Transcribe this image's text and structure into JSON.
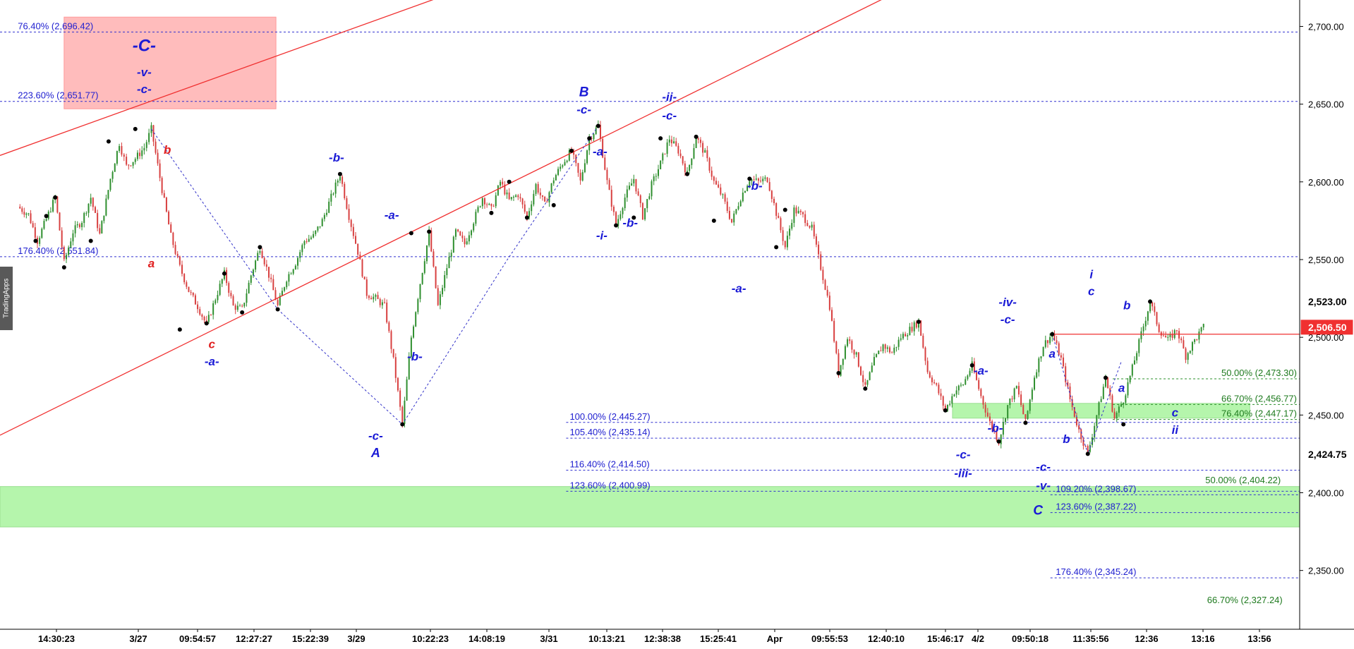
{
  "chart_data": {
    "type": "candlestick",
    "watermark": "TradingApps",
    "y_axis": {
      "ylim": [
        2314,
        2717
      ],
      "tick_labels": [
        "2,700.00",
        "2,650.00",
        "2,600.00",
        "2,550.00",
        "2,500.00",
        "2,450.00",
        "2,400.00",
        "2,350.00"
      ],
      "tick_values": [
        2700,
        2650,
        2600,
        2550,
        2500,
        2450,
        2400,
        2350
      ]
    },
    "x_axis": {
      "tick_labels": [
        "14:30:23",
        "3/27",
        "09:54:57",
        "12:27:27",
        "15:22:39",
        "3/29",
        "10:22:23",
        "14:08:19",
        "3/31",
        "10:13:21",
        "12:38:38",
        "15:25:41",
        "Apr",
        "09:55:53",
        "12:40:10",
        "15:46:17",
        "4/2",
        "09:50:18",
        "11:35:56",
        "12:36",
        "13:16",
        "13:56"
      ]
    },
    "price_markers": [
      {
        "label": "2,523.00",
        "value": 2523.0,
        "style": "dark"
      },
      {
        "label": "2,506.50",
        "value": 2506.5,
        "style": "current"
      },
      {
        "label": "2,424.75",
        "value": 2424.75,
        "style": "dark"
      }
    ],
    "price_path": [
      [
        0,
        2584
      ],
      [
        0.6,
        2579
      ],
      [
        1.1,
        2562
      ],
      [
        1.6,
        2576
      ],
      [
        2.1,
        2590
      ],
      [
        2.6,
        2548
      ],
      [
        3.1,
        2568
      ],
      [
        3.6,
        2575
      ],
      [
        4.1,
        2590
      ],
      [
        4.6,
        2566
      ],
      [
        5.2,
        2602
      ],
      [
        5.7,
        2625
      ],
      [
        6.1,
        2610
      ],
      [
        6.6,
        2615
      ],
      [
        7.1,
        2622
      ],
      [
        7.5,
        2634
      ],
      [
        8.1,
        2595
      ],
      [
        8.6,
        2565
      ],
      [
        9.1,
        2545
      ],
      [
        9.6,
        2530
      ],
      [
        10.1,
        2520
      ],
      [
        10.6,
        2508
      ],
      [
        11.1,
        2525
      ],
      [
        11.6,
        2541
      ],
      [
        12.1,
        2520
      ],
      [
        12.6,
        2518
      ],
      [
        13.1,
        2540
      ],
      [
        13.6,
        2558
      ],
      [
        14.1,
        2540
      ],
      [
        14.6,
        2520
      ],
      [
        15.1,
        2538
      ],
      [
        15.6,
        2548
      ],
      [
        16.1,
        2562
      ],
      [
        16.6,
        2565
      ],
      [
        17.1,
        2575
      ],
      [
        17.6,
        2590
      ],
      [
        18.1,
        2605
      ],
      [
        18.6,
        2578
      ],
      [
        19.1,
        2555
      ],
      [
        19.6,
        2528
      ],
      [
        20.1,
        2525
      ],
      [
        20.6,
        2520
      ],
      [
        21.1,
        2485
      ],
      [
        21.6,
        2444
      ],
      [
        22.1,
        2500
      ],
      [
        22.6,
        2535
      ],
      [
        23.1,
        2567
      ],
      [
        23.6,
        2520
      ],
      [
        24.1,
        2545
      ],
      [
        24.6,
        2568
      ],
      [
        25.1,
        2560
      ],
      [
        25.6,
        2575
      ],
      [
        26.1,
        2590
      ],
      [
        26.6,
        2582
      ],
      [
        27.1,
        2600
      ],
      [
        27.6,
        2588
      ],
      [
        28.1,
        2592
      ],
      [
        28.6,
        2577
      ],
      [
        29.1,
        2598
      ],
      [
        29.6,
        2585
      ],
      [
        30.1,
        2602
      ],
      [
        30.6,
        2612
      ],
      [
        31.1,
        2620
      ],
      [
        31.6,
        2600
      ],
      [
        32.1,
        2628
      ],
      [
        32.6,
        2636
      ],
      [
        33.1,
        2600
      ],
      [
        33.6,
        2572
      ],
      [
        34.1,
        2590
      ],
      [
        34.6,
        2602
      ],
      [
        35.1,
        2578
      ],
      [
        35.6,
        2598
      ],
      [
        36.1,
        2612
      ],
      [
        36.6,
        2628
      ],
      [
        37.1,
        2620
      ],
      [
        37.6,
        2605
      ],
      [
        38.1,
        2629
      ],
      [
        38.6,
        2618
      ],
      [
        39.1,
        2600
      ],
      [
        39.6,
        2590
      ],
      [
        40.1,
        2574
      ],
      [
        40.6,
        2590
      ],
      [
        41.1,
        2602
      ],
      [
        41.6,
        2600
      ],
      [
        42.1,
        2602
      ],
      [
        42.6,
        2580
      ],
      [
        43.1,
        2558
      ],
      [
        43.6,
        2582
      ],
      [
        44.1,
        2578
      ],
      [
        44.6,
        2570
      ],
      [
        45.1,
        2545
      ],
      [
        45.6,
        2520
      ],
      [
        46.1,
        2477
      ],
      [
        46.6,
        2500
      ],
      [
        47.1,
        2488
      ],
      [
        47.6,
        2467
      ],
      [
        48.1,
        2485
      ],
      [
        48.6,
        2495
      ],
      [
        49.1,
        2490
      ],
      [
        49.6,
        2500
      ],
      [
        50.1,
        2505
      ],
      [
        50.6,
        2510
      ],
      [
        51.1,
        2478
      ],
      [
        51.6,
        2468
      ],
      [
        52.1,
        2453
      ],
      [
        52.6,
        2465
      ],
      [
        53.1,
        2470
      ],
      [
        53.6,
        2482
      ],
      [
        54.1,
        2462
      ],
      [
        54.6,
        2445
      ],
      [
        55.1,
        2433
      ],
      [
        55.6,
        2456
      ],
      [
        56.1,
        2468
      ],
      [
        56.6,
        2445
      ],
      [
        57.1,
        2475
      ],
      [
        57.6,
        2495
      ],
      [
        58.1,
        2502
      ],
      [
        58.6,
        2486
      ],
      [
        59.1,
        2460
      ],
      [
        59.6,
        2440
      ],
      [
        60.1,
        2425
      ],
      [
        60.6,
        2450
      ],
      [
        61.1,
        2474
      ],
      [
        61.6,
        2448
      ],
      [
        62.1,
        2460
      ],
      [
        62.6,
        2480
      ],
      [
        63.1,
        2502
      ],
      [
        63.6,
        2523
      ],
      [
        64.1,
        2505
      ],
      [
        64.6,
        2498
      ],
      [
        65.1,
        2505
      ],
      [
        65.6,
        2488
      ],
      [
        66.1,
        2498
      ],
      [
        66.6,
        2506.5
      ]
    ],
    "pivots": [
      [
        1,
        2562
      ],
      [
        1.6,
        2578
      ],
      [
        2.1,
        2590
      ],
      [
        2.6,
        2545
      ],
      [
        4.1,
        2562
      ],
      [
        5.1,
        2626
      ],
      [
        6.6,
        2634
      ],
      [
        9.1,
        2505
      ],
      [
        10.6,
        2509
      ],
      [
        11.6,
        2541
      ],
      [
        12.6,
        2516
      ],
      [
        13.6,
        2558
      ],
      [
        14.6,
        2518
      ],
      [
        18.1,
        2605
      ],
      [
        21.6,
        2444
      ],
      [
        22.1,
        2567
      ],
      [
        23.1,
        2568
      ],
      [
        26.6,
        2580
      ],
      [
        27.6,
        2600
      ],
      [
        28.6,
        2577
      ],
      [
        30.1,
        2585
      ],
      [
        31.1,
        2620
      ],
      [
        32.1,
        2628
      ],
      [
        32.6,
        2636
      ],
      [
        33.6,
        2572
      ],
      [
        34.6,
        2577
      ],
      [
        36.1,
        2628
      ],
      [
        37.6,
        2605
      ],
      [
        38.1,
        2629
      ],
      [
        39.1,
        2575
      ],
      [
        41.1,
        2602
      ],
      [
        42.6,
        2558
      ],
      [
        43.1,
        2582
      ],
      [
        46.1,
        2477
      ],
      [
        47.6,
        2467
      ],
      [
        50.6,
        2510
      ],
      [
        52.1,
        2453
      ],
      [
        53.6,
        2482
      ],
      [
        55.1,
        2433
      ],
      [
        56.6,
        2445
      ],
      [
        58.1,
        2502
      ],
      [
        60.1,
        2425
      ],
      [
        61.1,
        2474
      ],
      [
        62.1,
        2444
      ],
      [
        63.6,
        2523
      ]
    ],
    "red_channel_lines": [
      {
        "from": [
          -1,
          2617
        ],
        "to": [
          24,
          2720
        ]
      },
      {
        "from": [
          -1,
          2437
        ],
        "to": [
          49,
          2720
        ]
      }
    ],
    "current_price_line": {
      "from": [
        58.1,
        2502
      ],
      "to": [
        72,
        2502
      ]
    },
    "dotted_paths": [
      [
        [
          7.5,
          2634
        ],
        [
          14.6,
          2518
        ],
        [
          21.6,
          2444
        ],
        [
          27.5,
          2550
        ],
        [
          32.6,
          2636
        ]
      ],
      [
        [
          58.1,
          2502
        ],
        [
          60.1,
          2425
        ],
        [
          62.0,
          2485
        ]
      ]
    ],
    "zones": [
      {
        "x": [
          2.6,
          14.5
        ],
        "y": [
          2647,
          2706
        ],
        "color": "#ffbcbc",
        "border": "#ff9a9a"
      },
      {
        "x": [
          -1,
          72
        ],
        "y": [
          2378,
          2404
        ],
        "color": "#b5f5ac",
        "border": "#9adf91"
      },
      {
        "x": [
          52.5,
          69.2
        ],
        "y": [
          2448,
          2457.5
        ],
        "color": "#b5f5ac",
        "border": "#9adf91"
      }
    ],
    "fib_levels": [
      {
        "label": "76.40% (2,696.42)",
        "value": 2696.42,
        "x_start": -1,
        "label_x": 0,
        "color": "#2020d0"
      },
      {
        "label": "223.60% (2,651.77)",
        "value": 2651.77,
        "x_start": -1,
        "label_x": 0,
        "color": "#2020d0"
      },
      {
        "label": "176.40% (2,551.84)",
        "value": 2551.84,
        "x_start": -1,
        "label_x": 0,
        "color": "#2020d0"
      },
      {
        "label": "100.00% (2,445.27)",
        "value": 2445.27,
        "x_start": 30.8,
        "label_x": 31.0,
        "color": "#2020d0"
      },
      {
        "label": "105.40% (2,435.14)",
        "value": 2435.14,
        "x_start": 30.8,
        "label_x": 31.0,
        "color": "#2020d0"
      },
      {
        "label": "116.40% (2,414.50)",
        "value": 2414.5,
        "x_start": 30.8,
        "label_x": 31.0,
        "color": "#2020d0"
      },
      {
        "label": "123.60% (2,400.99)",
        "value": 2400.99,
        "x_start": 30.8,
        "label_x": 31.0,
        "color": "#2020d0"
      },
      {
        "label": "109.20% (2,398.67)",
        "value": 2398.67,
        "x_start": 58.0,
        "label_x": 58.3,
        "color": "#2020d0"
      },
      {
        "label": "123.60% (2,387.22)",
        "value": 2387.22,
        "x_start": 58.0,
        "label_x": 58.3,
        "color": "#2020d0"
      },
      {
        "label": "176.40% (2,345.24)",
        "value": 2345.24,
        "x_start": 58.0,
        "label_x": 58.3,
        "color": "#2020d0"
      },
      {
        "label": "50.00% (2,473.30)",
        "value": 2473.3,
        "x_start": 61.5,
        "label_x": 67.6,
        "color": "#1e7a1e"
      },
      {
        "label": "66.70% (2,456.77)",
        "value": 2456.77,
        "x_start": 61.5,
        "label_x": 67.6,
        "color": "#1e7a1e"
      },
      {
        "label": "76.40% (2,447.17)",
        "value": 2447.17,
        "x_start": 61.5,
        "label_x": 67.6,
        "color": "#1e7a1e"
      },
      {
        "label": "50.00% (2,404.22)",
        "value": 2404.22,
        "x_start": 66.5,
        "label_x": 66.7,
        "color": "#1e7a1e",
        "no_line": true
      },
      {
        "label": "66.70% (2,327.24)",
        "value": 2327.24,
        "x_start": 66.5,
        "label_x": 66.8,
        "color": "#1e7a1e",
        "no_line": true
      }
    ],
    "wave_labels": [
      {
        "text": "-C-",
        "x": 7.1,
        "y": 2684,
        "color": "#1a1ad6",
        "size": 24
      },
      {
        "text": "-v-",
        "x": 7.1,
        "y": 2668,
        "color": "#1a1ad6",
        "size": 17
      },
      {
        "text": "-c-",
        "x": 7.1,
        "y": 2657,
        "color": "#1a1ad6",
        "size": 17
      },
      {
        "text": "b",
        "x": 8.4,
        "y": 2618,
        "color": "#e02020",
        "size": 17
      },
      {
        "text": "a",
        "x": 7.5,
        "y": 2545,
        "color": "#e02020",
        "size": 17
      },
      {
        "text": "c",
        "x": 10.9,
        "y": 2493,
        "color": "#e02020",
        "size": 17
      },
      {
        "text": "-a-",
        "x": 10.9,
        "y": 2482,
        "color": "#1a1ad6",
        "size": 17
      },
      {
        "text": "-b-",
        "x": 17.9,
        "y": 2613,
        "color": "#1a1ad6",
        "size": 17
      },
      {
        "text": "-a-",
        "x": 21.0,
        "y": 2576,
        "color": "#1a1ad6",
        "size": 17
      },
      {
        "text": "-b-",
        "x": 22.3,
        "y": 2485,
        "color": "#1a1ad6",
        "size": 17
      },
      {
        "text": "-c-",
        "x": 20.1,
        "y": 2434,
        "color": "#1a1ad6",
        "size": 17
      },
      {
        "text": "A",
        "x": 20.1,
        "y": 2423,
        "color": "#1a1ad6",
        "size": 18
      },
      {
        "text": "B",
        "x": 31.8,
        "y": 2655,
        "color": "#1a1ad6",
        "size": 19
      },
      {
        "text": "-c-",
        "x": 31.8,
        "y": 2644,
        "color": "#1a1ad6",
        "size": 17
      },
      {
        "text": "-a-",
        "x": 32.7,
        "y": 2617,
        "color": "#1a1ad6",
        "size": 17
      },
      {
        "text": "-i-",
        "x": 32.8,
        "y": 2563,
        "color": "#1a1ad6",
        "size": 17
      },
      {
        "text": "-b-",
        "x": 34.4,
        "y": 2571,
        "color": "#1a1ad6",
        "size": 17
      },
      {
        "text": "-ii-",
        "x": 36.6,
        "y": 2652,
        "color": "#1a1ad6",
        "size": 17
      },
      {
        "text": "-c-",
        "x": 36.6,
        "y": 2640,
        "color": "#1a1ad6",
        "size": 17
      },
      {
        "text": "-b-",
        "x": 41.4,
        "y": 2595,
        "color": "#1a1ad6",
        "size": 17
      },
      {
        "text": "-a-",
        "x": 40.5,
        "y": 2529,
        "color": "#1a1ad6",
        "size": 17
      },
      {
        "text": "-iv-",
        "x": 55.6,
        "y": 2520,
        "color": "#1a1ad6",
        "size": 17
      },
      {
        "text": "-c-",
        "x": 55.6,
        "y": 2509,
        "color": "#1a1ad6",
        "size": 17
      },
      {
        "text": "-a-",
        "x": 54.1,
        "y": 2476,
        "color": "#1a1ad6",
        "size": 17
      },
      {
        "text": "-b-",
        "x": 54.9,
        "y": 2439,
        "color": "#1a1ad6",
        "size": 17
      },
      {
        "text": "-c-",
        "x": 53.1,
        "y": 2422,
        "color": "#1a1ad6",
        "size": 17
      },
      {
        "text": "-iii-",
        "x": 53.1,
        "y": 2410,
        "color": "#1a1ad6",
        "size": 17
      },
      {
        "text": "-c-",
        "x": 57.6,
        "y": 2414,
        "color": "#1a1ad6",
        "size": 17
      },
      {
        "text": "-v-",
        "x": 57.6,
        "y": 2402,
        "color": "#1a1ad6",
        "size": 17
      },
      {
        "text": "C",
        "x": 57.3,
        "y": 2386,
        "color": "#1a1ad6",
        "size": 19
      },
      {
        "text": "a",
        "x": 58.1,
        "y": 2487,
        "color": "#1a1ad6",
        "size": 17
      },
      {
        "text": "b",
        "x": 58.9,
        "y": 2432,
        "color": "#1a1ad6",
        "size": 17
      },
      {
        "text": "i",
        "x": 60.3,
        "y": 2538,
        "color": "#1a1ad6",
        "size": 17
      },
      {
        "text": "c",
        "x": 60.3,
        "y": 2527,
        "color": "#1a1ad6",
        "size": 17
      },
      {
        "text": "b",
        "x": 62.3,
        "y": 2518,
        "color": "#1a1ad6",
        "size": 17
      },
      {
        "text": "a",
        "x": 62.0,
        "y": 2465,
        "color": "#1a1ad6",
        "size": 17
      },
      {
        "text": "c",
        "x": 65.0,
        "y": 2449,
        "color": "#1a1ad6",
        "size": 17
      },
      {
        "text": "ii",
        "x": 65.0,
        "y": 2438,
        "color": "#1a1ad6",
        "size": 17
      }
    ]
  }
}
